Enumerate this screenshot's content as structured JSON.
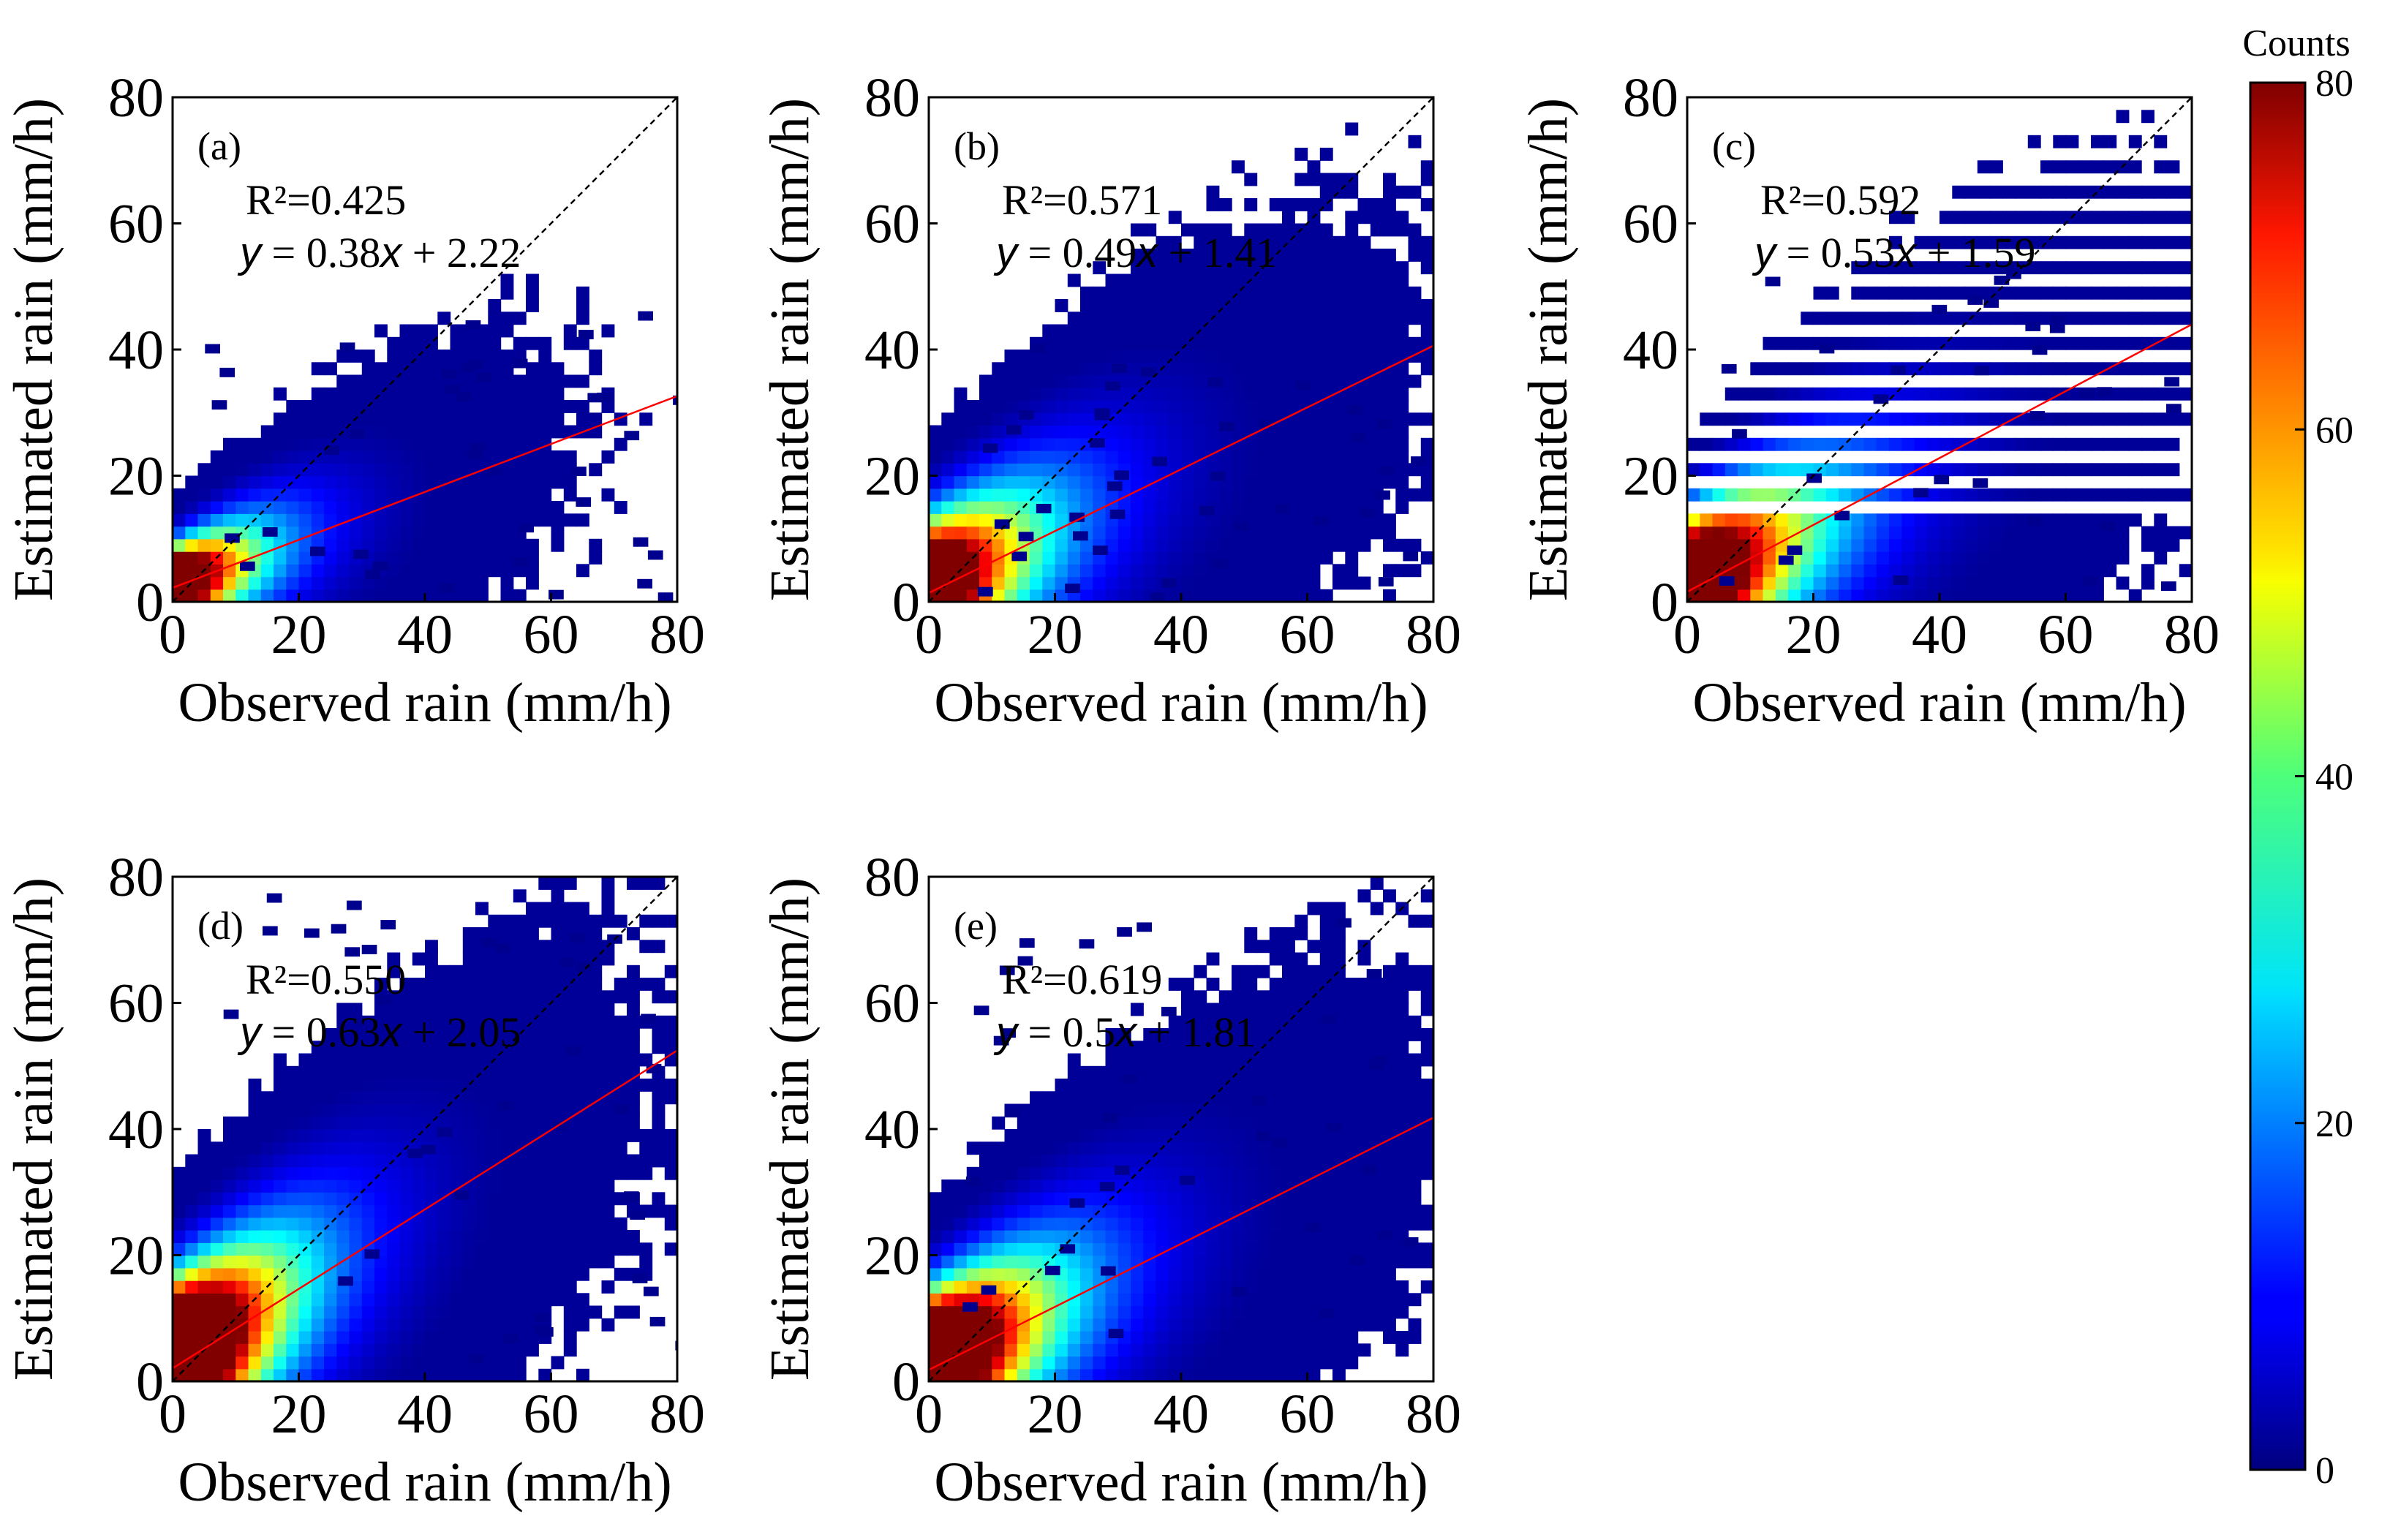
{
  "figure": {
    "colorbar": {
      "label": "Counts",
      "ticks": [
        "0",
        "20",
        "40",
        "60",
        "80"
      ],
      "range": [
        0,
        80
      ],
      "colormap": "jet"
    }
  },
  "chart_data": [
    {
      "type": "heatmap",
      "panel_label": "(a)",
      "r2_text": "R²=0.425",
      "eq_y": "y",
      "eq_eq": " = ",
      "eq_slope": "0.38",
      "eq_x": "x",
      "eq_icpt": " + 2.22",
      "xlabel": "Observed rain (mm/h)",
      "ylabel": "Estimated rain (mm/h)",
      "xlim": [
        0,
        80
      ],
      "ylim": [
        0,
        80
      ],
      "xticks": [
        "0",
        "20",
        "40",
        "60",
        "80"
      ],
      "yticks": [
        "0",
        "20",
        "40",
        "60",
        "80"
      ],
      "fit": {
        "slope": 0.38,
        "intercept": 2.22,
        "color": "#ff0000"
      },
      "one_to_one": {
        "color": "#000000",
        "style": "dashed"
      },
      "density": {
        "x_spread": 17,
        "y_spread": 10,
        "x_max": 80,
        "y_max": 50,
        "n_outliers": 40,
        "count_scale": 160
      }
    },
    {
      "type": "heatmap",
      "panel_label": "(b)",
      "r2_text": "R²=0.571",
      "eq_y": "y",
      "eq_eq": " = ",
      "eq_slope": "0.49",
      "eq_x": "x",
      "eq_icpt": " + 1.41",
      "xlabel": "Observed rain (mm/h)",
      "ylabel": "Estimated rain (mm/h)",
      "xlim": [
        0,
        80
      ],
      "ylim": [
        0,
        80
      ],
      "xticks": [
        "0",
        "20",
        "40",
        "60",
        "80"
      ],
      "yticks": [
        "0",
        "20",
        "40",
        "60",
        "80"
      ],
      "fit": {
        "slope": 0.49,
        "intercept": 1.41,
        "color": "#ff0000"
      },
      "one_to_one": {
        "color": "#000000",
        "style": "dashed"
      },
      "density": {
        "x_spread": 22,
        "y_spread": 18,
        "x_max": 80,
        "y_max": 44,
        "n_outliers": 45,
        "count_scale": 150
      }
    },
    {
      "type": "heatmap",
      "panel_label": "(c)",
      "r2_text": "R²=0.592",
      "eq_y": "y",
      "eq_eq": " = ",
      "eq_slope": "0.53",
      "eq_x": "x",
      "eq_icpt": " + 1.59",
      "xlabel": "Observed rain (mm/h)",
      "ylabel": "Estimated rain (mm/h)",
      "xlim": [
        0,
        80
      ],
      "ylim": [
        0,
        80
      ],
      "xticks": [
        "0",
        "20",
        "40",
        "60",
        "80"
      ],
      "yticks": [
        "0",
        "20",
        "40",
        "60",
        "80"
      ],
      "fit": {
        "slope": 0.53,
        "intercept": 1.59,
        "color": "#ff0000"
      },
      "one_to_one": {
        "color": "#000000",
        "style": "dashed"
      },
      "density": {
        "x_spread": 24,
        "y_spread": 18,
        "x_max": 80,
        "y_max": 54,
        "n_outliers": 35,
        "count_scale": 170,
        "banded": true
      }
    },
    {
      "type": "heatmap",
      "panel_label": "(d)",
      "r2_text": "R²=0.550",
      "eq_y": "y",
      "eq_eq": " = ",
      "eq_slope": "0.63",
      "eq_x": "x",
      "eq_icpt": " + 2.05",
      "xlabel": "Observed rain (mm/h)",
      "ylabel": "Estimated rain (mm/h)",
      "xlim": [
        0,
        80
      ],
      "ylim": [
        0,
        80
      ],
      "xticks": [
        "0",
        "20",
        "40",
        "60",
        "80"
      ],
      "yticks": [
        "0",
        "20",
        "40",
        "60",
        "80"
      ],
      "fit": {
        "slope": 0.63,
        "intercept": 2.05,
        "color": "#ff0000"
      },
      "one_to_one": {
        "color": "#000000",
        "style": "dashed"
      },
      "density": {
        "x_spread": 20,
        "y_spread": 20,
        "x_max": 80,
        "y_max": 79,
        "n_outliers": 40,
        "count_scale": 220
      }
    },
    {
      "type": "heatmap",
      "panel_label": "(e)",
      "r2_text": "R²=0.619",
      "eq_y": "y",
      "eq_eq": " = ",
      "eq_slope": "0.5",
      "eq_x": "x",
      "eq_icpt": " + 1.81",
      "xlabel": "Observed rain (mm/h)",
      "ylabel": "Estimated rain (mm/h)",
      "xlim": [
        0,
        80
      ],
      "ylim": [
        0,
        80
      ],
      "xticks": [
        "0",
        "20",
        "40",
        "60",
        "80"
      ],
      "yticks": [
        "0",
        "20",
        "40",
        "60",
        "80"
      ],
      "fit": {
        "slope": 0.5,
        "intercept": 1.81,
        "color": "#ff0000"
      },
      "one_to_one": {
        "color": "#000000",
        "style": "dashed"
      },
      "density": {
        "x_spread": 22,
        "y_spread": 18,
        "x_max": 80,
        "y_max": 74,
        "n_outliers": 40,
        "count_scale": 200
      }
    }
  ]
}
